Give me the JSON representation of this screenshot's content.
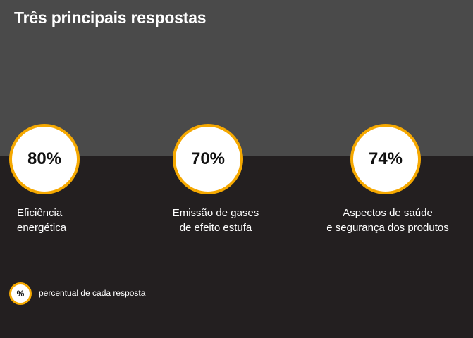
{
  "title": "Três principais respostas",
  "chart_data": {
    "type": "table",
    "title": "Três principais respostas",
    "items": [
      {
        "value": "80%",
        "label": "Eficiência\nenergética"
      },
      {
        "value": "70%",
        "label": "Emissão de gases\nde efeito estufa"
      },
      {
        "value": "74%",
        "label": "Aspectos de saúde\ne segurança dos produtos"
      }
    ],
    "legend": {
      "symbol": "%",
      "text": "percentual de cada resposta"
    }
  },
  "colors": {
    "ring": "#f5a800",
    "top_band": "#4a4a4a",
    "bottom_band": "#231f20"
  }
}
